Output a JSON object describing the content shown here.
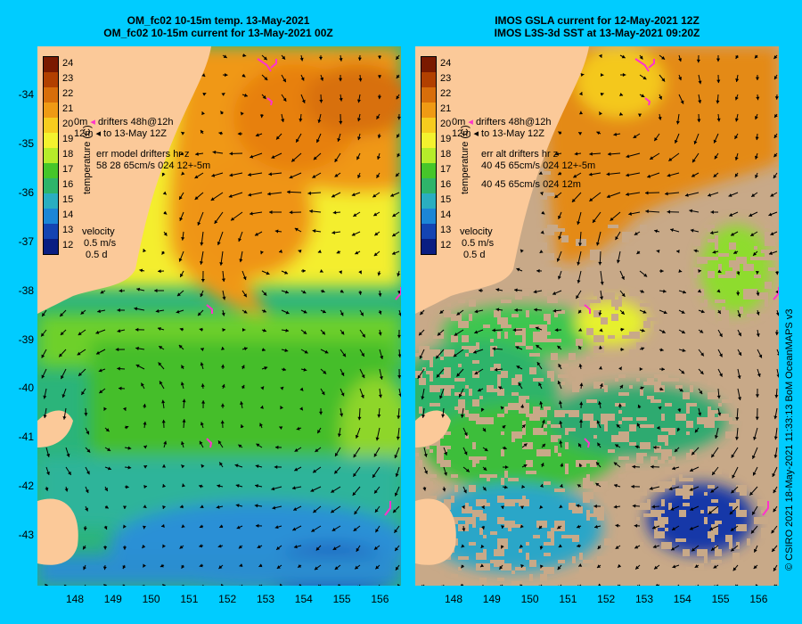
{
  "left_panel": {
    "title_line1": "OM_fc02 10-15m temp. 13-May-2021",
    "title_line2": "OM_fc02 10-15m current for 13-May-2021 00Z",
    "legend": {
      "drifter_line1": "drifters 48h@12h",
      "drifter_line2": "to 13-May 12Z",
      "drifter_prefix1": "0m",
      "drifter_prefix2": "12m",
      "err_line1": "err model drifters hr z",
      "err_line2": "58 28 65cm/s 024 12+-5m",
      "err_line3": ""
    }
  },
  "right_panel": {
    "title_line1": "IMOS GSLA current for 12-May-2021 12Z",
    "title_line2": "IMOS L3S-3d SST at 13-May-2021 09:20Z",
    "legend": {
      "drifter_line1": "drifters 48h@12h",
      "drifter_line2": "to 13-May 12Z",
      "drifter_prefix1": "0m",
      "drifter_prefix2": "12m",
      "err_line1": "err alt drifters hr z",
      "err_line2": "40 45 65cm/s 024 12+-5m",
      "err_line3": "40 45 65cm/s 024 12m"
    }
  },
  "colorbar": {
    "label": "temperature (C)",
    "ticks": [
      "24",
      "23",
      "22",
      "21",
      "20",
      "19",
      "18",
      "17",
      "16",
      "15",
      "14",
      "13",
      "12"
    ],
    "colors": [
      "#7a1a00",
      "#b24000",
      "#d86e0a",
      "#ef9a14",
      "#f7cc1e",
      "#f4f22e",
      "#b6ec2a",
      "#46c62a",
      "#2eb46a",
      "#2aaec0",
      "#1c86d6",
      "#1444b2",
      "#0a1e82"
    ]
  },
  "velocity_scale": {
    "title": "velocity",
    "speed": "0.5 m/s",
    "days": "0.5 d"
  },
  "y_axis_labels": [
    "-34",
    "-35",
    "-36",
    "-37",
    "-38",
    "-39",
    "-40",
    "-41",
    "-42",
    "-43"
  ],
  "x_axis_labels": [
    "148",
    "149",
    "150",
    "151",
    "152",
    "153",
    "154",
    "155",
    "156"
  ],
  "credit": "© CSIRO 2021   18-May-2021 11:33:13 BoM OceanMAPS v3",
  "colors": {
    "background": "#00ccff",
    "land": "#fbc999",
    "missing_data": "#c8a988",
    "drifter": "#ff33cc",
    "arrow": "#000000"
  }
}
